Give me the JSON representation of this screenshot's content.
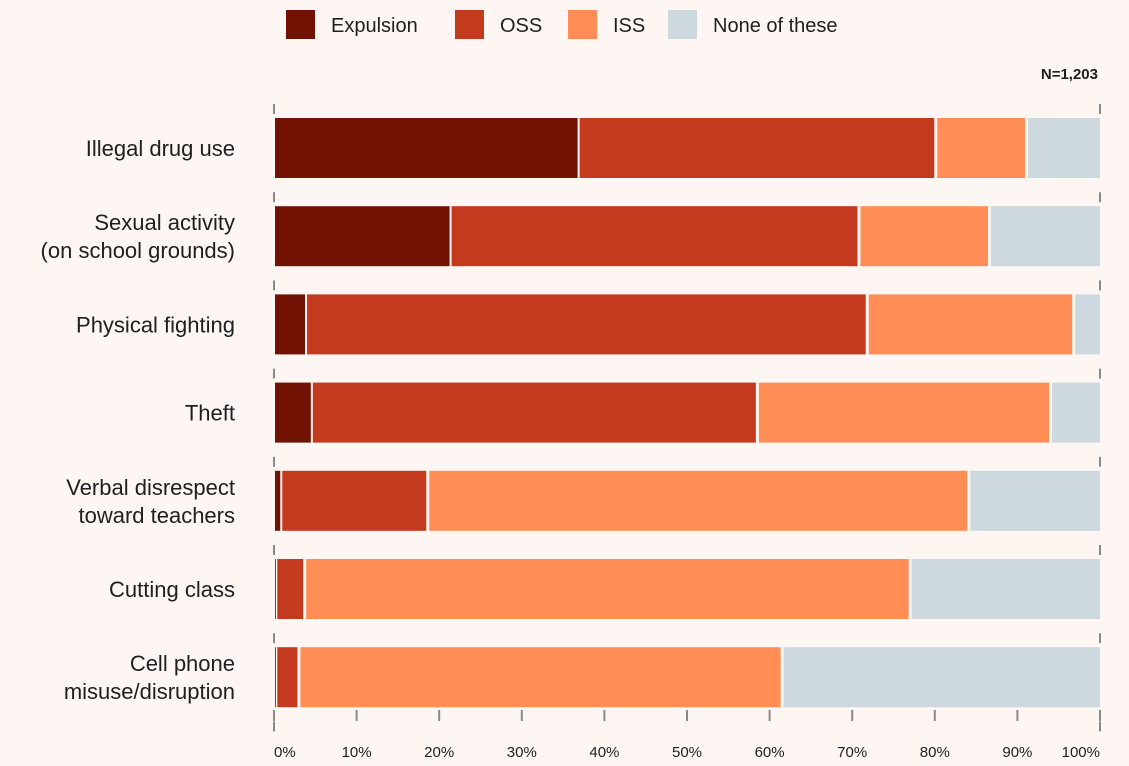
{
  "chart_data": {
    "type": "bar",
    "orientation": "horizontal",
    "stacked": true,
    "note": "N=1,203",
    "categories": [
      [
        "Illegal drug use"
      ],
      [
        "Sexual activity",
        "(on school grounds)"
      ],
      [
        "Physical fighting"
      ],
      [
        "Theft"
      ],
      [
        "Verbal disrespect",
        "toward teachers"
      ],
      [
        "Cutting class"
      ],
      [
        "Cell phone",
        "misuse/disruption"
      ]
    ],
    "series": [
      {
        "name": "Expulsion",
        "color": "#721205",
        "values": [
          37,
          21.5,
          4,
          4.7,
          1,
          0.4,
          0.4
        ]
      },
      {
        "name": "OSS",
        "color": "#c43a1e",
        "values": [
          43.3,
          49.5,
          68,
          54,
          17.8,
          3.5,
          2.8
        ]
      },
      {
        "name": "ISS",
        "color": "#ff8d55",
        "values": [
          11,
          15.8,
          25,
          35.5,
          65.5,
          73.3,
          58.5
        ]
      },
      {
        "name": "None of these",
        "color": "#cdd8df",
        "values": [
          8.7,
          13.2,
          3,
          5.8,
          15.7,
          22.8,
          38.3
        ]
      }
    ],
    "xlim": [
      0,
      100
    ],
    "xticks": [
      "0%",
      "10%",
      "20%",
      "30%",
      "40%",
      "50%",
      "60%",
      "70%",
      "80%",
      "90%",
      "100%"
    ],
    "legend_position": "top"
  }
}
